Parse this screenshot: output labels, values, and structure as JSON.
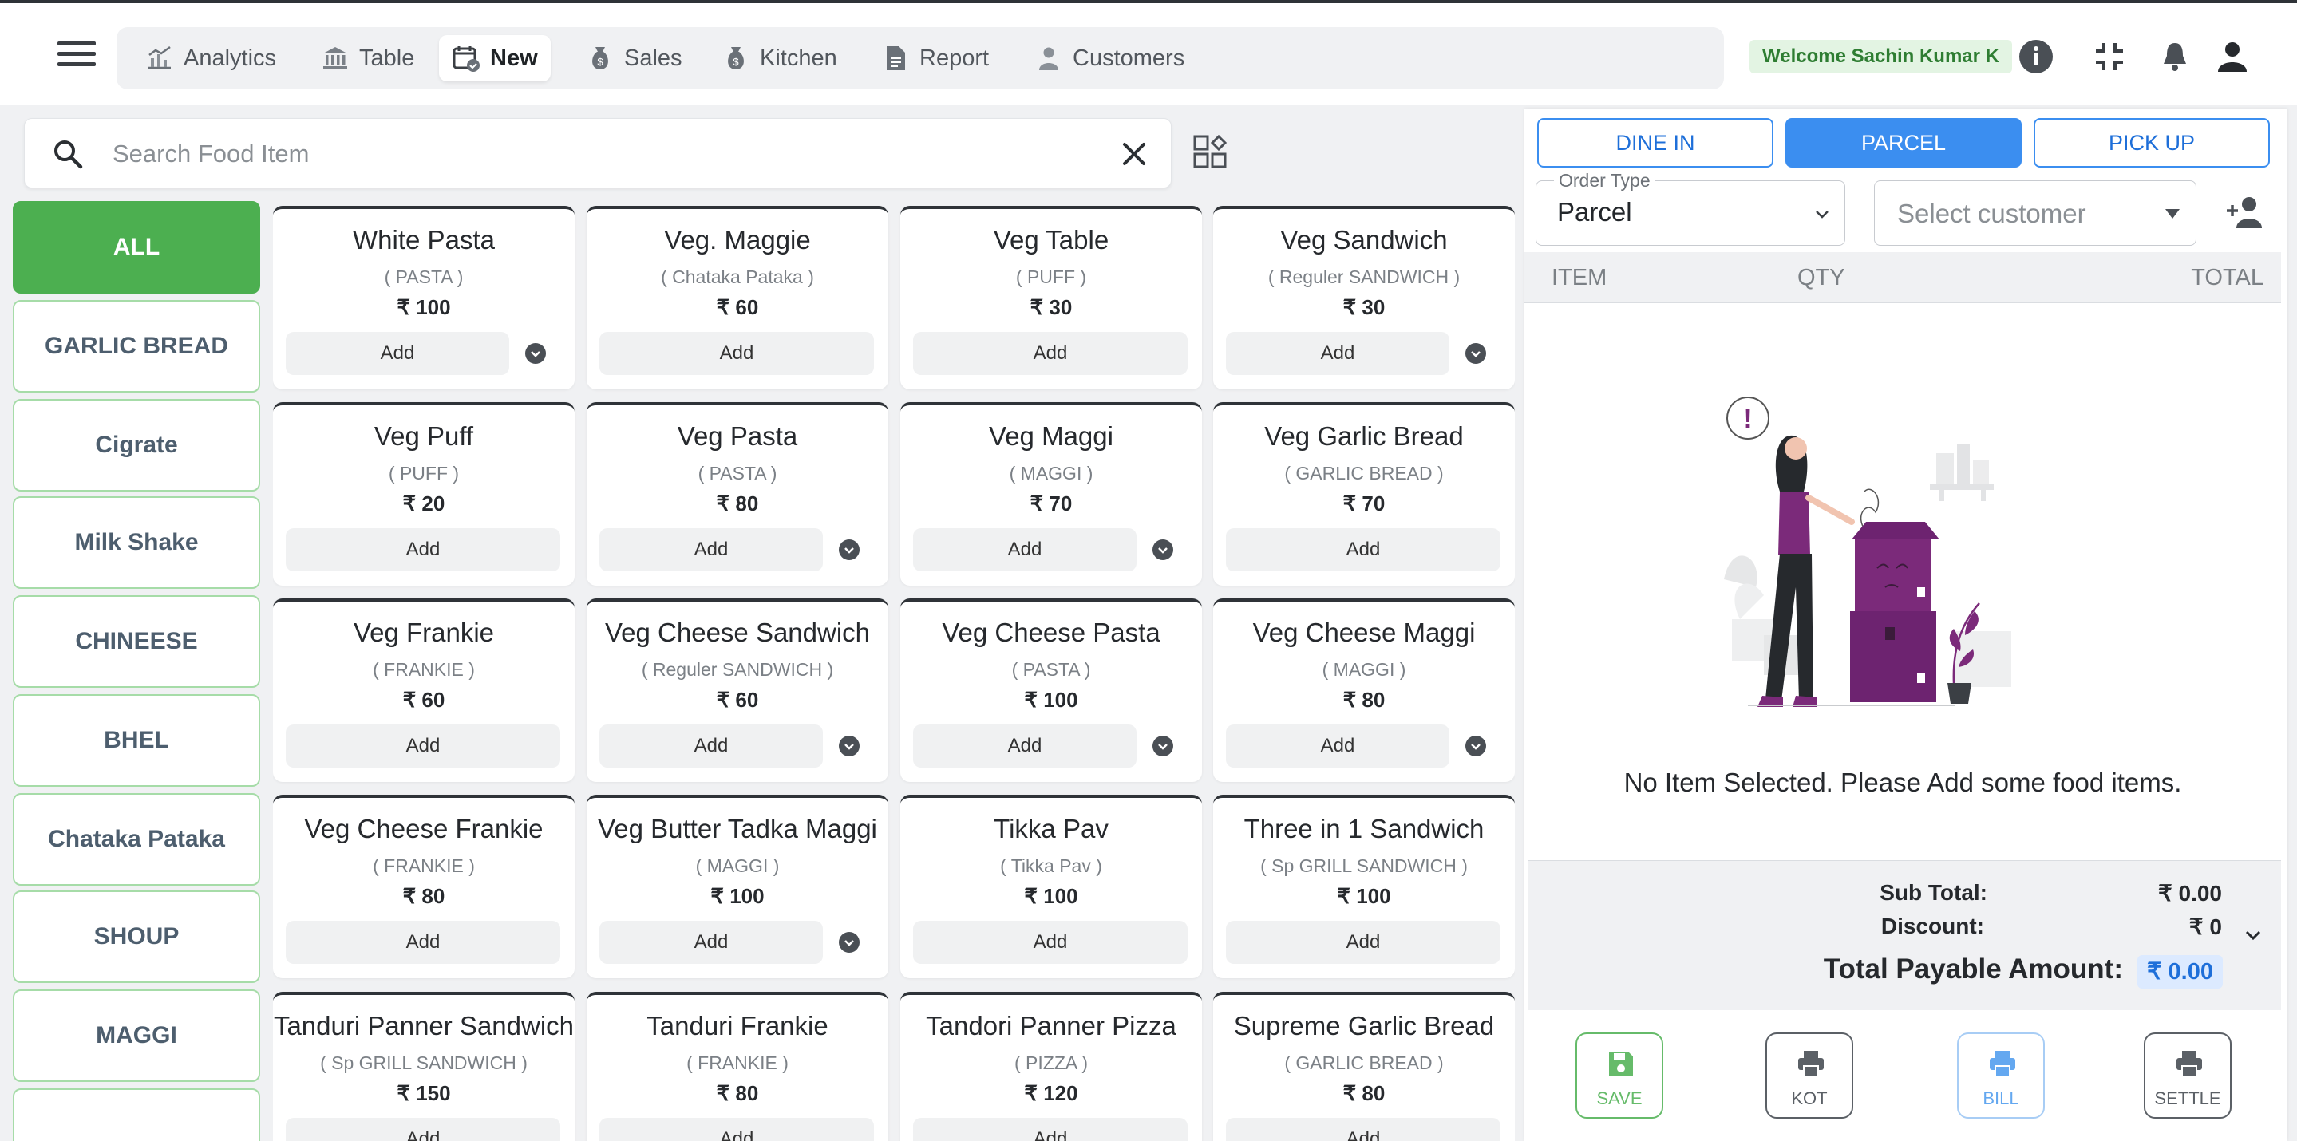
{
  "nav": {
    "items": [
      {
        "label": "Analytics",
        "icon": "analytics-icon"
      },
      {
        "label": "Table",
        "icon": "bank-icon"
      },
      {
        "label": "New",
        "icon": "calendar-check-icon",
        "active": true
      },
      {
        "label": "Sales",
        "icon": "money-bag-icon"
      },
      {
        "label": "Kitchen",
        "icon": "money-bag-icon"
      },
      {
        "label": "Report",
        "icon": "document-icon"
      },
      {
        "label": "Customers",
        "icon": "user-icon"
      }
    ]
  },
  "header": {
    "welcome": "Welcome Sachin Kumar K"
  },
  "search": {
    "placeholder": "Search Food Item"
  },
  "categories": [
    "ALL",
    "GARLIC BREAD",
    "Cigrate",
    "Milk Shake",
    "CHINEESE",
    "BHEL",
    "Chataka Pataka",
    "SHOUP",
    "MAGGI",
    ""
  ],
  "items": [
    {
      "name": "White Pasta",
      "category": "( PASTA )",
      "price": "₹ 100",
      "variants": true
    },
    {
      "name": "Veg. Maggie",
      "category": "( Chataka Pataka )",
      "price": "₹ 60",
      "variants": false
    },
    {
      "name": "Veg Table",
      "category": "( PUFF )",
      "price": "₹ 30",
      "variants": false
    },
    {
      "name": "Veg Sandwich",
      "category": "( Reguler SANDWICH )",
      "price": "₹ 30",
      "variants": true
    },
    {
      "name": "Veg Puff",
      "category": "( PUFF )",
      "price": "₹ 20",
      "variants": false
    },
    {
      "name": "Veg Pasta",
      "category": "( PASTA )",
      "price": "₹ 80",
      "variants": true
    },
    {
      "name": "Veg Maggi",
      "category": "( MAGGI )",
      "price": "₹ 70",
      "variants": true
    },
    {
      "name": "Veg Garlic Bread",
      "category": "( GARLIC BREAD )",
      "price": "₹ 70",
      "variants": false
    },
    {
      "name": "Veg Frankie",
      "category": "( FRANKIE )",
      "price": "₹ 60",
      "variants": false
    },
    {
      "name": "Veg Cheese Sandwich",
      "category": "( Reguler SANDWICH )",
      "price": "₹ 60",
      "variants": true
    },
    {
      "name": "Veg Cheese Pasta",
      "category": "( PASTA )",
      "price": "₹ 100",
      "variants": true
    },
    {
      "name": "Veg Cheese Maggi",
      "category": "( MAGGI )",
      "price": "₹ 80",
      "variants": true
    },
    {
      "name": "Veg Cheese Frankie",
      "category": "( FRANKIE )",
      "price": "₹ 80",
      "variants": false
    },
    {
      "name": "Veg Butter Tadka Maggi",
      "category": "( MAGGI )",
      "price": "₹ 100",
      "variants": true
    },
    {
      "name": "Tikka Pav",
      "category": "( Tikka Pav )",
      "price": "₹ 100",
      "variants": false
    },
    {
      "name": "Three in 1 Sandwich",
      "category": "( Sp GRILL SANDWICH )",
      "price": "₹ 100",
      "variants": false
    },
    {
      "name": "Tanduri Panner Sandwich",
      "category": "( Sp GRILL SANDWICH )",
      "price": "₹ 150",
      "variants": false
    },
    {
      "name": "Tanduri Frankie",
      "category": "( FRANKIE )",
      "price": "₹ 80",
      "variants": false
    },
    {
      "name": "Tandori Panner Pizza",
      "category": "( PIZZA )",
      "price": "₹ 120",
      "variants": false
    },
    {
      "name": "Supreme Garlic Bread",
      "category": "( GARLIC BREAD )",
      "price": "₹ 80",
      "variants": false
    }
  ],
  "add_label": "Add",
  "order": {
    "types": [
      "DINE IN",
      "PARCEL",
      "PICK UP"
    ],
    "active_type": "PARCEL",
    "order_type_label": "Order Type",
    "order_type_value": "Parcel",
    "customer_placeholder": "Select customer"
  },
  "cart": {
    "headers": {
      "item": "ITEM",
      "qty": "QTY",
      "total": "TOTAL"
    },
    "empty_message": "No Item Selected. Please Add some food items."
  },
  "totals": {
    "subtotal_label": "Sub Total:",
    "subtotal_value": "₹ 0.00",
    "discount_label": "Discount:",
    "discount_value": "₹ 0",
    "payable_label": "Total Payable Amount:",
    "payable_value": "₹ 0.00"
  },
  "actions": [
    {
      "label": "SAVE",
      "color": "#66bb6a"
    },
    {
      "label": "KOT",
      "color": "#5b6066"
    },
    {
      "label": "BILL",
      "color": "#64a8f0"
    },
    {
      "label": "SETTLE",
      "color": "#5b6066"
    }
  ],
  "colors": {
    "accent": "#4caf50",
    "primary": "#3b8ef0",
    "welcome_text": "#2e7d32"
  }
}
